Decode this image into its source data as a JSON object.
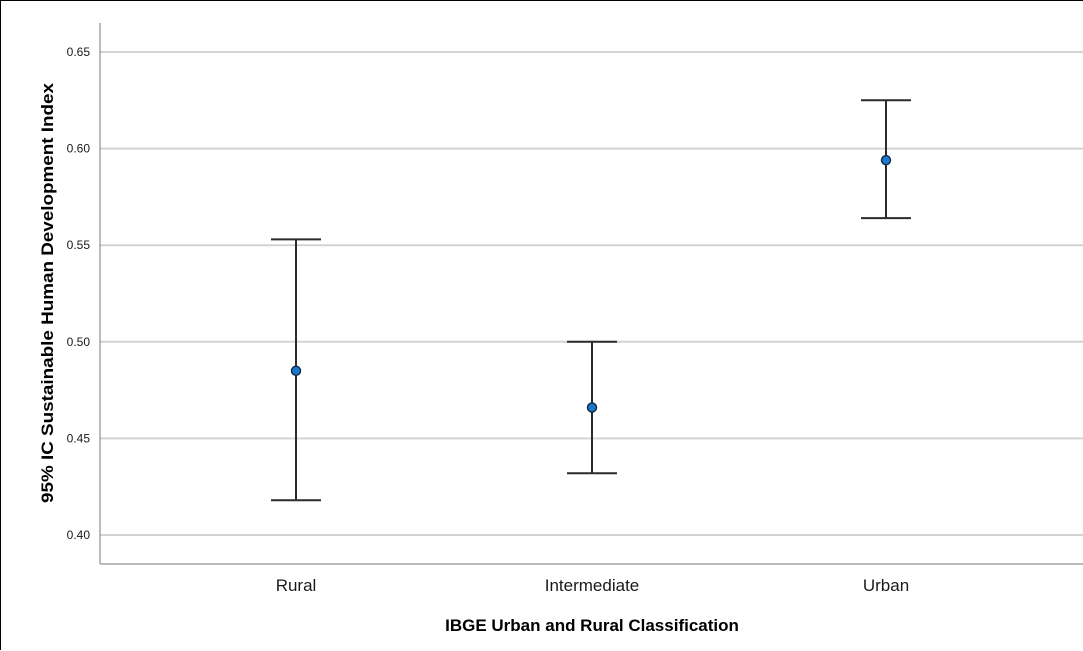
{
  "chart_data": {
    "type": "errorbar",
    "xlabel": "IBGE Urban and Rural Classification",
    "ylabel": "95% IC Sustainable Human Development Index",
    "categories": [
      "Rural",
      "Intermediate",
      "Urban"
    ],
    "mean": [
      0.485,
      0.466,
      0.594
    ],
    "ci_lower": [
      0.418,
      0.432,
      0.564
    ],
    "ci_upper": [
      0.553,
      0.5,
      0.625
    ],
    "yticks": [
      "0.40",
      "0.45",
      "0.50",
      "0.55",
      "0.60",
      "0.65"
    ],
    "ylim": [
      0.385,
      0.665
    ],
    "grid": true,
    "colors": {
      "point": "#1f78c8",
      "errorbar": "#2b2b2b",
      "grid": "#d3d3d3"
    }
  }
}
